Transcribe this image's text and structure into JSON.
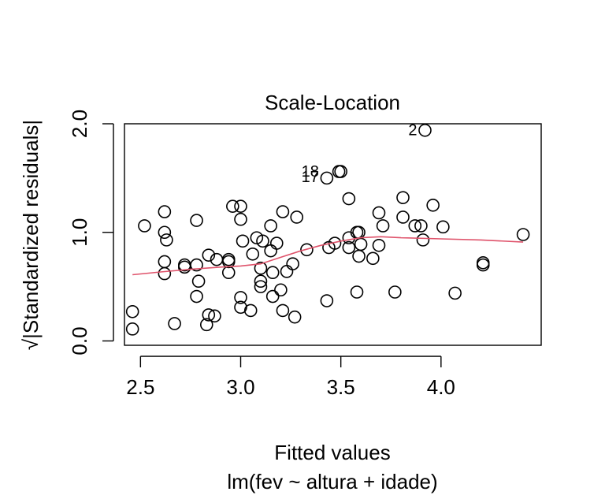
{
  "chart_data": {
    "type": "scatter",
    "title": "Scale-Location",
    "xlabel": "Fitted values",
    "xlabel2": "lm(fev ~ altura + idade)",
    "ylabel": "√|Standardized residuals|",
    "xlim": [
      2.42,
      4.5
    ],
    "ylim": [
      -0.04,
      2.0
    ],
    "xticks": [
      2.5,
      3.0,
      3.5,
      4.0
    ],
    "xtick_labels": [
      "2.5",
      "3.0",
      "3.5",
      "4.0"
    ],
    "yticks": [
      0.0,
      1.0,
      2.0
    ],
    "ytick_labels": [
      "0.0",
      "1.0",
      "2.0"
    ],
    "grid": false,
    "smooth_color": "#DF536B",
    "points": [
      [
        2.46,
        0.27
      ],
      [
        2.46,
        0.11
      ],
      [
        2.52,
        1.06
      ],
      [
        2.62,
        1.19
      ],
      [
        2.62,
        1.0
      ],
      [
        2.63,
        0.93
      ],
      [
        2.62,
        0.73
      ],
      [
        2.62,
        0.62
      ],
      [
        2.67,
        0.16
      ],
      [
        2.72,
        0.7
      ],
      [
        2.72,
        0.68
      ],
      [
        2.78,
        1.11
      ],
      [
        2.78,
        0.7
      ],
      [
        2.79,
        0.55
      ],
      [
        2.78,
        0.41
      ],
      [
        2.83,
        0.15
      ],
      [
        2.84,
        0.24
      ],
      [
        2.84,
        0.79
      ],
      [
        2.87,
        0.23
      ],
      [
        2.88,
        0.75
      ],
      [
        2.94,
        0.75
      ],
      [
        2.94,
        0.73
      ],
      [
        2.94,
        0.63
      ],
      [
        2.96,
        1.24
      ],
      [
        3.0,
        1.24
      ],
      [
        3.0,
        1.12
      ],
      [
        3.01,
        0.92
      ],
      [
        3.0,
        0.4
      ],
      [
        3.0,
        0.31
      ],
      [
        3.05,
        0.28
      ],
      [
        3.06,
        0.8
      ],
      [
        3.08,
        0.95
      ],
      [
        3.11,
        0.92
      ],
      [
        3.1,
        0.67
      ],
      [
        3.1,
        0.55
      ],
      [
        3.1,
        0.5
      ],
      [
        3.15,
        1.06
      ],
      [
        3.15,
        0.83
      ],
      [
        3.16,
        0.63
      ],
      [
        3.16,
        0.41
      ],
      [
        3.18,
        0.9
      ],
      [
        3.2,
        0.47
      ],
      [
        3.21,
        1.19
      ],
      [
        3.21,
        0.28
      ],
      [
        3.23,
        0.64
      ],
      [
        3.26,
        0.71
      ],
      [
        3.27,
        0.22
      ],
      [
        3.28,
        1.14
      ],
      [
        3.33,
        0.84
      ],
      [
        3.43,
        1.5
      ],
      [
        3.43,
        0.37
      ],
      [
        3.44,
        0.86
      ],
      [
        3.47,
        0.9
      ],
      [
        3.49,
        1.56
      ],
      [
        3.5,
        1.56
      ],
      [
        3.54,
        1.31
      ],
      [
        3.54,
        0.95
      ],
      [
        3.54,
        0.86
      ],
      [
        3.58,
        1.0
      ],
      [
        3.58,
        0.45
      ],
      [
        3.59,
        1.0
      ],
      [
        3.59,
        0.78
      ],
      [
        3.6,
        0.89
      ],
      [
        3.66,
        0.76
      ],
      [
        3.69,
        1.18
      ],
      [
        3.69,
        0.88
      ],
      [
        3.71,
        1.06
      ],
      [
        3.77,
        0.45
      ],
      [
        3.81,
        1.32
      ],
      [
        3.81,
        1.14
      ],
      [
        3.87,
        1.06
      ],
      [
        3.9,
        1.06
      ],
      [
        3.91,
        0.93
      ],
      [
        3.92,
        1.94
      ],
      [
        3.96,
        1.25
      ],
      [
        4.01,
        1.05
      ],
      [
        4.07,
        0.44
      ],
      [
        4.21,
        0.72
      ],
      [
        4.21,
        0.7
      ],
      [
        4.41,
        0.98
      ]
    ],
    "smooth": [
      [
        2.46,
        0.61
      ],
      [
        2.6,
        0.635
      ],
      [
        2.75,
        0.66
      ],
      [
        2.9,
        0.68
      ],
      [
        3.0,
        0.69
      ],
      [
        3.1,
        0.71
      ],
      [
        3.2,
        0.77
      ],
      [
        3.3,
        0.83
      ],
      [
        3.4,
        0.88
      ],
      [
        3.5,
        0.92
      ],
      [
        3.6,
        0.95
      ],
      [
        3.7,
        0.96
      ],
      [
        3.8,
        0.95
      ],
      [
        4.0,
        0.94
      ],
      [
        4.2,
        0.93
      ],
      [
        4.41,
        0.91
      ]
    ],
    "annotations": [
      {
        "label": "2",
        "x": 3.92,
        "y": 1.94
      },
      {
        "label": "18",
        "x": 3.43,
        "y": 1.5
      },
      {
        "label": "17",
        "x": 3.43,
        "y": 1.5
      }
    ]
  }
}
